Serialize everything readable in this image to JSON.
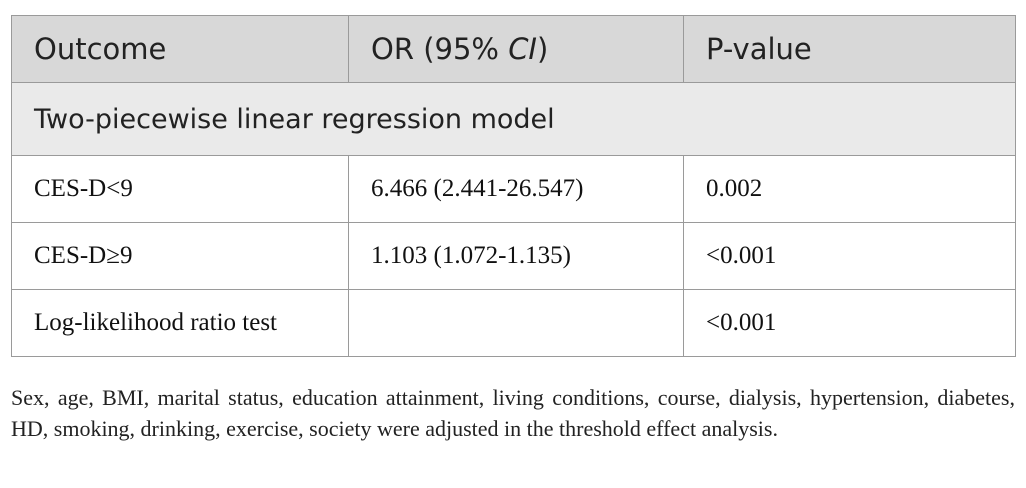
{
  "table": {
    "headers": {
      "outcome": "Outcome",
      "or_prefix": "OR (95% ",
      "or_italic": "CI",
      "or_suffix": ")",
      "pvalue": "P-value"
    },
    "section_label": "Two-piecewise linear regression model",
    "rows": [
      {
        "outcome": "CES-D<9",
        "or": "6.466 (2.441-26.547)",
        "p": "0.002"
      },
      {
        "outcome": "CES-D≥9",
        "or": "1.103 (1.072-1.135)",
        "p": "<0.001"
      },
      {
        "outcome": "Log-likelihood ratio test",
        "or": "",
        "p": "<0.001"
      }
    ]
  },
  "footnote": "Sex, age, BMI, marital status, education attainment, living conditions, course, dialysis, hypertension, diabetes, HD, smoking, drinking, exercise, society were adjusted in the threshold effect analysis."
}
